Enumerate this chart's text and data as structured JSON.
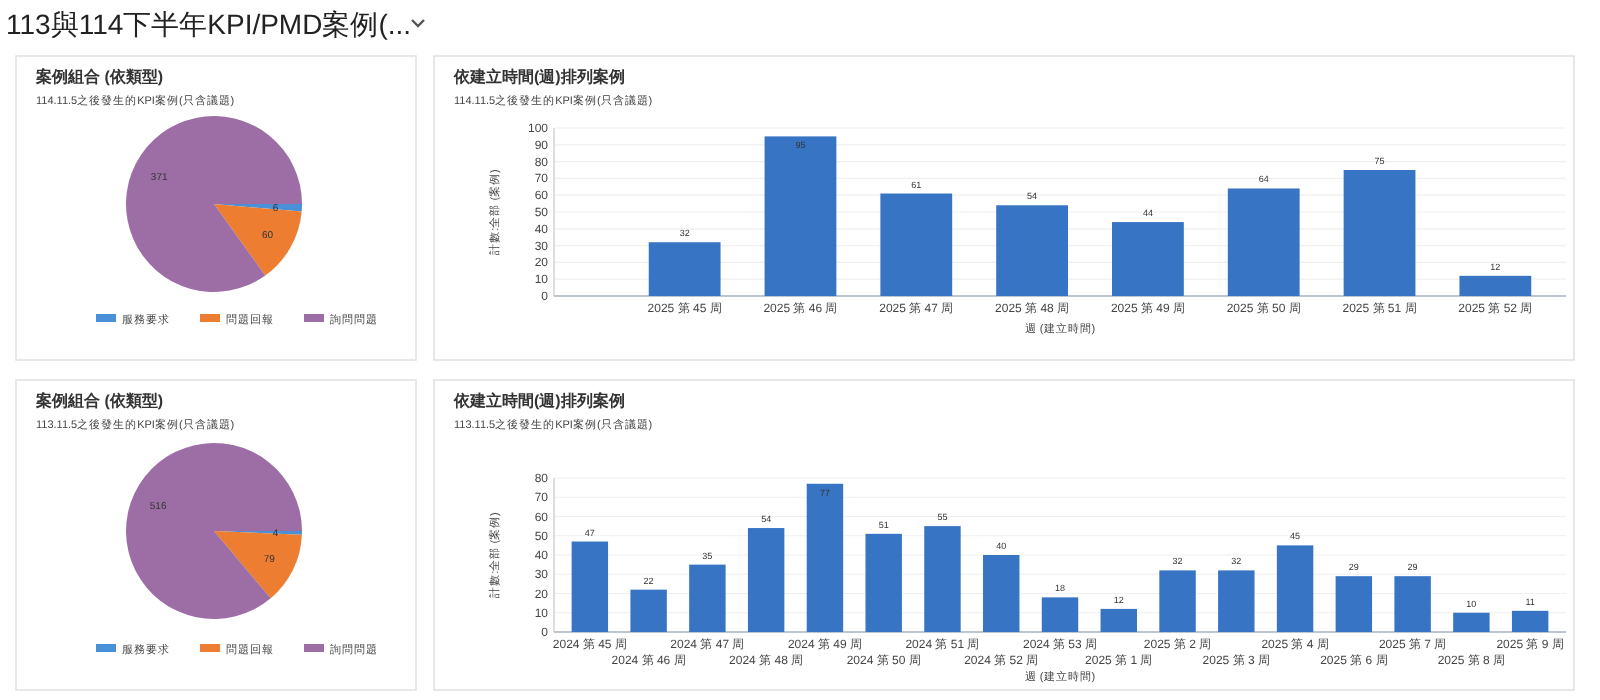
{
  "chart_data": [
    {
      "type": "other",
      "title": "113與114下半年KPI/PMD案例(..."
    },
    {
      "type": "pie",
      "title": "案例組合 (依類型)",
      "subtitle": "114.11.5之後發生的KPI案例(只含議題)",
      "categories": [
        "服務要求",
        "問題回報",
        "詢問問題"
      ],
      "values": [
        6,
        60,
        371
      ],
      "colors": [
        "#4a90d9",
        "#ed7d31",
        "#9c6ea5"
      ],
      "data_labels": true,
      "legend": "bottom"
    },
    {
      "type": "bar",
      "title": "依建立時間(週)排列案例",
      "subtitle": "114.11.5之後發生的KPI案例(只含議題)",
      "xlabel": "週 (建立時間)",
      "ylabel": "計數:全部 (案例)",
      "categories": [
        "2025 第 45 周",
        "2025 第 46 周",
        "2025 第 47 周",
        "2025 第 48 周",
        "2025 第 49 周",
        "2025 第 50 周",
        "2025 第 51 周",
        "2025 第 52 周"
      ],
      "values": [
        32,
        95,
        61,
        54,
        44,
        64,
        75,
        12
      ],
      "color": "#3775c4",
      "ylim": [
        0,
        100
      ],
      "yticks": [
        0,
        10,
        20,
        30,
        40,
        50,
        60,
        70,
        80,
        90,
        100
      ],
      "grid": "y",
      "data_labels": true
    },
    {
      "type": "pie",
      "title": "案例組合 (依類型)",
      "subtitle": "113.11.5之後發生的KPI案例(只含議題)",
      "categories": [
        "服務要求",
        "問題回報",
        "詢問問題"
      ],
      "values": [
        4,
        79,
        516
      ],
      "colors": [
        "#4a90d9",
        "#ed7d31",
        "#9c6ea5"
      ],
      "data_labels": true,
      "legend": "bottom"
    },
    {
      "type": "bar",
      "title": "依建立時間(週)排列案例",
      "subtitle": "113.11.5之後發生的KPI案例(只含議題)",
      "xlabel": "週 (建立時間)",
      "ylabel": "計數:全部 (案例)",
      "categories": [
        "2024 第 45 周",
        "2024 第 46 周",
        "2024 第 47 周",
        "2024 第 48 周",
        "2024 第 49 周",
        "2024 第 50 周",
        "2024 第 51 周",
        "2024 第 52 周",
        "2024 第 53 周",
        "2025 第 1 周",
        "2025 第 2 周",
        "2025 第 3 周",
        "2025 第 4 周",
        "2025 第 6 周",
        "2025 第 7 周",
        "2025 第 8 周",
        "2025 第 9 周"
      ],
      "values": [
        47,
        22,
        35,
        54,
        77,
        51,
        55,
        40,
        18,
        12,
        32,
        32,
        45,
        29,
        29,
        10,
        11
      ],
      "color": "#3775c4",
      "ylim": [
        0,
        80
      ],
      "yticks": [
        0,
        10,
        20,
        30,
        40,
        50,
        60,
        70,
        80
      ],
      "grid": "y",
      "data_labels": true
    }
  ]
}
